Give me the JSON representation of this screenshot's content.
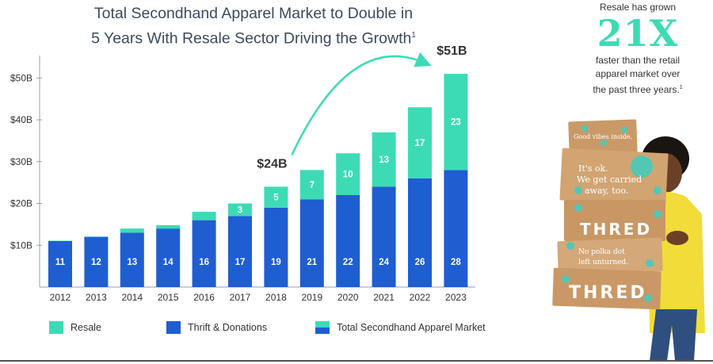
{
  "title": {
    "line1": "Total Secondhand Apparel Market to Double in",
    "line2": "5 Years With Resale Sector Driving the Growth",
    "footnote": "1"
  },
  "chart_data": {
    "type": "bar",
    "stacked": true,
    "categories": [
      "2012",
      "2013",
      "2014",
      "2015",
      "2016",
      "2017",
      "2018",
      "2019",
      "2020",
      "2021",
      "2022",
      "2023"
    ],
    "series": [
      {
        "name": "Thrift & Donations",
        "color": "#1f5ed1",
        "values": [
          11,
          12,
          13,
          14,
          16,
          17,
          19,
          21,
          22,
          24,
          26,
          28
        ],
        "labels": [
          "11",
          "12",
          "13",
          "14",
          "16",
          "17",
          "19",
          "21",
          "22",
          "24",
          "26",
          "28"
        ]
      },
      {
        "name": "Resale",
        "color": "#3ddbb5",
        "values": [
          0.1,
          0.1,
          1,
          0.8,
          2,
          3,
          5,
          7,
          10,
          13,
          17,
          23
        ],
        "labels": [
          "",
          "",
          "",
          "",
          "",
          "3",
          "5",
          "7",
          "10",
          "13",
          "17",
          "23"
        ]
      }
    ],
    "yticks": [
      10,
      20,
      30,
      40,
      50
    ],
    "ytick_labels": [
      "$10B",
      "$20B",
      "$30B",
      "$40B",
      "$50B"
    ],
    "ylim": [
      0,
      55
    ],
    "annotations": [
      {
        "text": "$24B",
        "category": "2018"
      },
      {
        "text": "$51B",
        "category": "2023"
      }
    ],
    "arrow": {
      "from": "2018",
      "to": "2023"
    }
  },
  "legend": {
    "resale": "Resale",
    "thrift": "Thrift & Donations",
    "total": "Total Secondhand Apparel Market"
  },
  "side": {
    "pre": "Resale has grown",
    "big": "21X",
    "post1": "faster than the retail",
    "post2": "apparel market over",
    "post3": "the past three years.",
    "footnote": "1"
  },
  "photo_boxes": {
    "box1": "Good vibes inside.",
    "box2a": "It's ok.",
    "box2b": "We get carried",
    "box2c": "away, too.",
    "box3": "THRED",
    "box4a": "No polka dot",
    "box4b": "left unturned.",
    "box5": "THRED"
  }
}
